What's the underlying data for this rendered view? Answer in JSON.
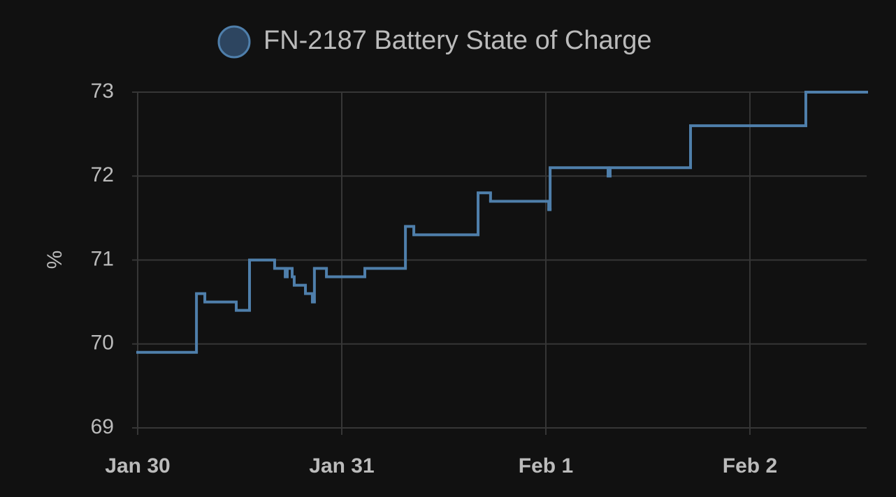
{
  "chart_data": {
    "type": "line",
    "step": "post",
    "title": "FN-2187 Battery State of Charge",
    "y_label": "%",
    "x": [
      0,
      0.288,
      0.329,
      0.483,
      0.548,
      0.671,
      0.723,
      0.733,
      0.757,
      0.767,
      0.822,
      0.856,
      0.866,
      0.925,
      1.113,
      1.312,
      1.353,
      1.668,
      1.729,
      2.014,
      2.021,
      2.305,
      2.315,
      2.709,
      3.274,
      3.572
    ],
    "series": [
      {
        "name": "FN-2187 Battery State of Charge",
        "color": "#4f7fab",
        "values": [
          69.9,
          70.6,
          70.5,
          70.4,
          71.0,
          70.9,
          70.8,
          70.9,
          70.8,
          70.7,
          70.6,
          70.5,
          70.9,
          70.8,
          70.9,
          71.4,
          71.3,
          71.8,
          71.7,
          71.6,
          72.1,
          72.0,
          72.1,
          72.6,
          73.0,
          73.0
        ]
      }
    ],
    "xlim": [
      0,
      3.572
    ],
    "xticks": [
      {
        "value": 0,
        "label": "Jan 30"
      },
      {
        "value": 1,
        "label": "Jan 31"
      },
      {
        "value": 2,
        "label": "Feb 1"
      },
      {
        "value": 3,
        "label": "Feb 2"
      }
    ],
    "ylim": [
      69,
      73
    ],
    "yticks": [
      69,
      70,
      71,
      72,
      73
    ],
    "grid": true,
    "legend": "top"
  }
}
